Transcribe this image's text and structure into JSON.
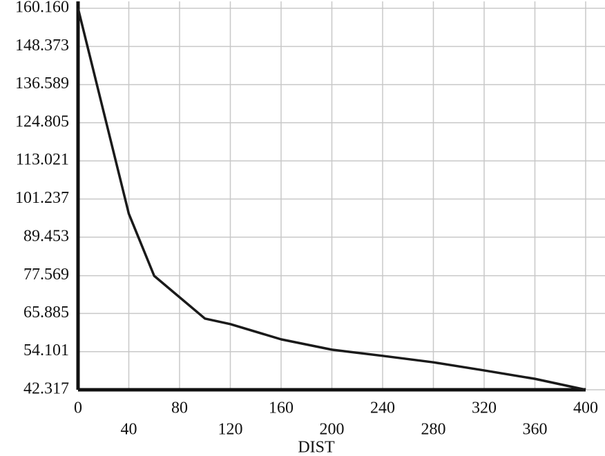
{
  "chart_data": {
    "type": "line",
    "x_label": "DIST",
    "xlim": [
      0,
      400
    ],
    "ylim": [
      42.317,
      160.16
    ],
    "xticks": [
      0,
      40,
      80,
      120,
      160,
      200,
      240,
      280,
      320,
      360,
      400
    ],
    "yticks": [
      42.317,
      54.101,
      65.885,
      77.569,
      89.453,
      101.237,
      113.021,
      124.805,
      136.589,
      148.373,
      {
        "value": 160.16,
        "label": "160.160"
      }
    ],
    "grid": true,
    "x": [
      0,
      40,
      60,
      100,
      120,
      160,
      200,
      240,
      280,
      320,
      360,
      400
    ],
    "series": [
      {
        "color": "#1a1a1a",
        "values": [
          160.16,
          96.7,
          77.5,
          64.3,
          62.6,
          57.9,
          54.7,
          52.8,
          50.8,
          48.3,
          45.7,
          42.317
        ]
      }
    ]
  }
}
